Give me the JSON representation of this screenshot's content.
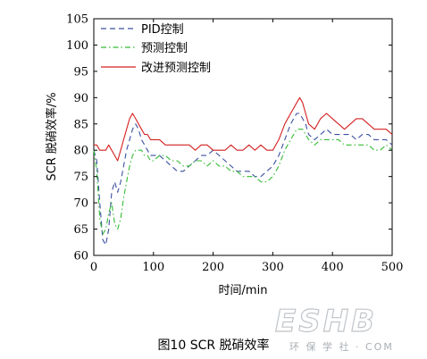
{
  "caption": "图10 SCR 脱硝效率",
  "watermark": {
    "big": "ESHB",
    "small": "环 保 学 社 · COM"
  },
  "colors": {
    "pid": "#3b4fa0",
    "pred": "#33bb33",
    "improved": "#d42020"
  },
  "chart_data": {
    "type": "line",
    "title": "",
    "xlabel": "时间/min",
    "ylabel": "SCR 脱硝效率/%",
    "xlim": [
      0,
      500
    ],
    "ylim": [
      60,
      105
    ],
    "xticks": [
      0,
      100,
      200,
      300,
      400,
      500
    ],
    "yticks": [
      60,
      65,
      70,
      75,
      80,
      85,
      90,
      95,
      100,
      105
    ],
    "grid": false,
    "legend_position": "top-left",
    "x": [
      0,
      5,
      10,
      15,
      20,
      25,
      30,
      35,
      40,
      45,
      50,
      55,
      60,
      65,
      70,
      75,
      80,
      85,
      90,
      95,
      100,
      110,
      120,
      130,
      140,
      150,
      160,
      170,
      180,
      190,
      200,
      210,
      220,
      230,
      240,
      250,
      260,
      270,
      280,
      290,
      300,
      310,
      320,
      330,
      340,
      345,
      350,
      355,
      360,
      370,
      380,
      390,
      400,
      410,
      420,
      430,
      440,
      450,
      460,
      470,
      480,
      490,
      500
    ],
    "series": [
      {
        "name": "PID控制",
        "style": "dashed",
        "values": [
          80,
          78,
          70,
          63,
          62,
          65,
          72,
          74,
          72,
          74,
          77,
          80,
          82,
          84,
          85,
          84,
          82,
          81,
          80,
          79,
          79,
          79,
          78,
          77,
          76,
          76,
          77,
          78,
          79,
          79,
          80,
          79,
          78,
          77,
          76,
          76,
          76,
          75,
          75,
          76,
          77,
          79,
          82,
          85,
          87,
          87,
          86,
          85,
          83,
          82,
          83,
          84,
          83,
          83,
          83,
          83,
          82,
          83,
          83,
          82,
          82,
          82,
          81
        ]
      },
      {
        "name": "预测控制",
        "style": "dashdot",
        "values": [
          80,
          76,
          67,
          64,
          65,
          68,
          70,
          66,
          65,
          67,
          71,
          74,
          77,
          79,
          80,
          80,
          80,
          79,
          79,
          78,
          78,
          79,
          79,
          78,
          78,
          77,
          77,
          78,
          78,
          77,
          78,
          77,
          77,
          76,
          76,
          75,
          75,
          75,
          74,
          74,
          75,
          77,
          80,
          82,
          84,
          84,
          84,
          83,
          82,
          81,
          82,
          82,
          82,
          82,
          81,
          81,
          81,
          81,
          81,
          80,
          80,
          81,
          80
        ]
      },
      {
        "name": "改进预测控制",
        "style": "solid",
        "values": [
          81,
          81,
          80,
          80,
          80,
          81,
          80,
          79,
          78,
          80,
          82,
          84,
          86,
          87,
          86,
          85,
          84,
          83,
          83,
          82,
          82,
          82,
          81,
          81,
          81,
          81,
          81,
          80,
          81,
          81,
          80,
          80,
          80,
          81,
          80,
          80,
          81,
          80,
          81,
          80,
          80,
          82,
          85,
          87,
          89,
          90,
          89,
          87,
          85,
          84,
          86,
          87,
          86,
          85,
          84,
          85,
          86,
          86,
          85,
          84,
          84,
          84,
          83
        ]
      }
    ]
  }
}
